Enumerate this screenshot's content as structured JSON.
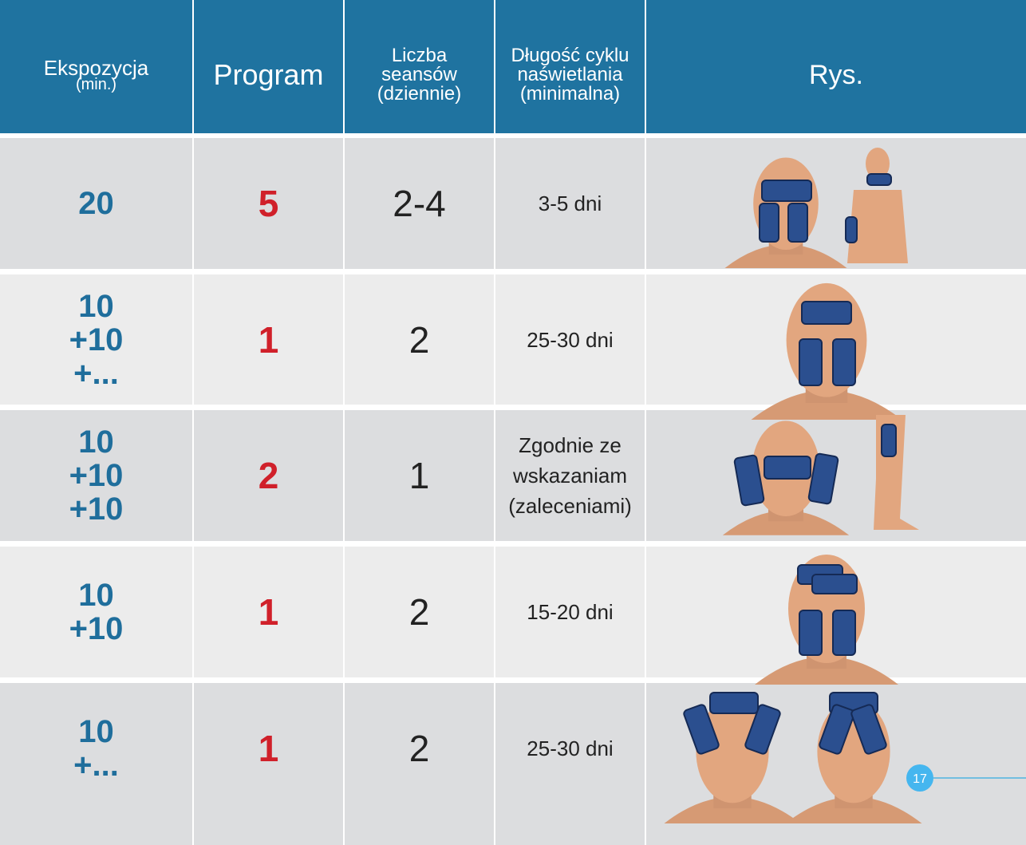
{
  "header": {
    "columns": [
      [
        "Ekspozycja",
        "(min.)"
      ],
      [
        "Program"
      ],
      [
        "Liczba",
        "seansów",
        "(dziennie)"
      ],
      [
        "Długość cyklu",
        "naświetlania",
        "(minimalna)"
      ],
      [
        "Rys."
      ]
    ]
  },
  "rows": [
    {
      "exposure": [
        "20"
      ],
      "program": "5",
      "sessions": "2-4",
      "duration": [
        "3-5 dni"
      ]
    },
    {
      "exposure": [
        "10",
        "+10",
        "+..."
      ],
      "program": "1",
      "sessions": "2",
      "duration": [
        "25-30 dni"
      ]
    },
    {
      "exposure": [
        "10",
        "+10",
        "+10"
      ],
      "program": "2",
      "sessions": "1",
      "duration": [
        "Zgodnie ze",
        "wskazaniam",
        "(zaleceniami)"
      ]
    },
    {
      "exposure": [
        "10",
        "+10"
      ],
      "program": "1",
      "sessions": "2",
      "duration": [
        "15-20 dni"
      ]
    },
    {
      "exposure": [
        "10",
        "+..."
      ],
      "program": "1",
      "sessions": "2",
      "duration": [
        "25-30 dni"
      ]
    }
  ],
  "page_number": "17"
}
